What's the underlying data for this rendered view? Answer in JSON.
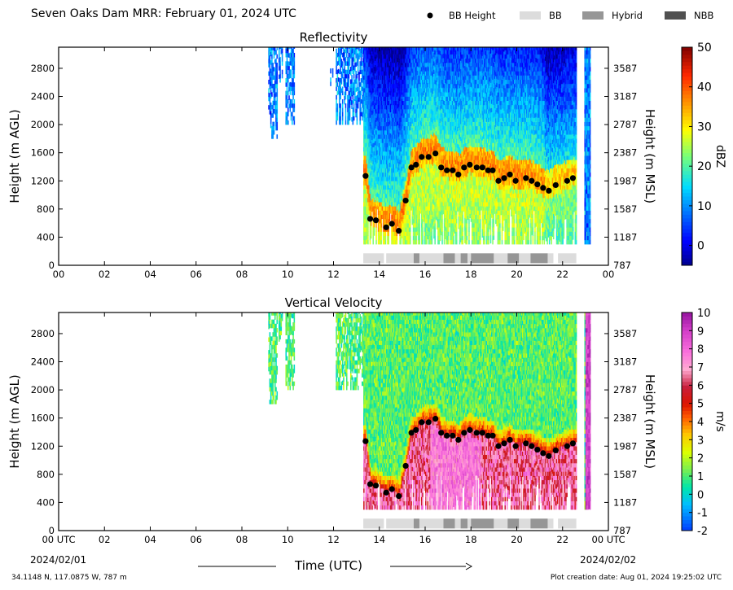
{
  "header": {
    "title": "Seven Oaks Dam MRR:  February 01, 2024 UTC",
    "legend": [
      {
        "kind": "dot",
        "label": "BB Height",
        "color": "#000000"
      },
      {
        "kind": "box",
        "label": "BB",
        "color": "#dcdcdc"
      },
      {
        "kind": "box",
        "label": "Hybrid",
        "color": "#969696"
      },
      {
        "kind": "box",
        "label": "NBB",
        "color": "#505050"
      }
    ]
  },
  "footer": {
    "x_title": "Time (UTC)",
    "date_start": "2024/02/01",
    "date_end": "2024/02/02",
    "location": "34.1148 N, 117.0875 W, 787 m",
    "creation": "Plot creation date: Aug 01, 2024 19:25:02 UTC"
  },
  "chart_data": [
    {
      "type": "heatmap",
      "title": "Reflectivity",
      "ylabel": "Height (m AGL)",
      "ylabel_right": "Height (m MSL)",
      "xlim": [
        0,
        24
      ],
      "ylim": [
        0,
        3100
      ],
      "x_ticks": [
        "00",
        "02",
        "04",
        "06",
        "08",
        "10",
        "12",
        "14",
        "16",
        "18",
        "20",
        "22",
        "00"
      ],
      "y_ticks": [
        0,
        400,
        800,
        1200,
        1600,
        2000,
        2400,
        2800
      ],
      "y_ticks_right": [
        787,
        1187,
        1587,
        1987,
        2387,
        2787,
        3187,
        3587
      ],
      "colorbar": {
        "label": "dBZ",
        "min": -5,
        "max": 50,
        "ticks": [
          0,
          10,
          20,
          30,
          40,
          50
        ]
      },
      "bb_height": {
        "times": [
          13.4,
          13.6,
          13.85,
          14.3,
          14.55,
          14.85,
          15.15,
          15.4,
          15.6,
          15.85,
          16.15,
          16.45,
          16.7,
          16.95,
          17.2,
          17.45,
          17.7,
          17.95,
          18.25,
          18.5,
          18.75,
          18.95,
          19.2,
          19.45,
          19.7,
          19.95,
          20.4,
          20.65,
          20.9,
          21.15,
          21.4,
          21.7,
          22.2,
          22.45
        ],
        "heights": [
          1270,
          660,
          640,
          540,
          590,
          490,
          920,
          1390,
          1430,
          1540,
          1540,
          1590,
          1390,
          1350,
          1350,
          1290,
          1390,
          1430,
          1390,
          1390,
          1350,
          1350,
          1200,
          1240,
          1290,
          1200,
          1240,
          1200,
          1150,
          1100,
          1060,
          1140,
          1200,
          1240
        ]
      },
      "bb_type": [
        {
          "start": 13.3,
          "end": 14.2,
          "type": "BB"
        },
        {
          "start": 14.3,
          "end": 15.5,
          "type": "BB"
        },
        {
          "start": 15.5,
          "end": 15.75,
          "type": "Hybrid"
        },
        {
          "start": 15.75,
          "end": 16.8,
          "type": "BB"
        },
        {
          "start": 16.8,
          "end": 17.3,
          "type": "Hybrid"
        },
        {
          "start": 17.3,
          "end": 17.55,
          "type": "BB"
        },
        {
          "start": 17.55,
          "end": 17.85,
          "type": "Hybrid"
        },
        {
          "start": 17.85,
          "end": 18.0,
          "type": "BB"
        },
        {
          "start": 18.0,
          "end": 19.0,
          "type": "Hybrid"
        },
        {
          "start": 19.0,
          "end": 19.6,
          "type": "BB"
        },
        {
          "start": 19.6,
          "end": 20.1,
          "type": "Hybrid"
        },
        {
          "start": 20.1,
          "end": 20.6,
          "type": "BB"
        },
        {
          "start": 20.6,
          "end": 21.35,
          "type": "Hybrid"
        },
        {
          "start": 21.35,
          "end": 21.6,
          "type": "BB"
        },
        {
          "start": 21.8,
          "end": 22.6,
          "type": "BB"
        }
      ],
      "coverage": [
        {
          "start": 9.15,
          "end": 9.55,
          "top": 3100,
          "bottom": 1800
        },
        {
          "start": 9.6,
          "end": 9.75,
          "top": 3100,
          "bottom": 2600
        },
        {
          "start": 9.9,
          "end": 10.3,
          "top": 3100,
          "bottom": 2000
        },
        {
          "start": 11.85,
          "end": 11.95,
          "top": 2800,
          "bottom": 2550
        },
        {
          "start": 12.1,
          "end": 13.3,
          "top": 3100,
          "bottom": 2000
        },
        {
          "start": 13.3,
          "end": 22.6,
          "top": 3100,
          "bottom": 300
        },
        {
          "start": 22.95,
          "end": 23.2,
          "top": 3100,
          "bottom": 300
        }
      ]
    },
    {
      "type": "heatmap",
      "title": "Vertical Velocity",
      "ylabel": "Height (m AGL)",
      "ylabel_right": "Height (m MSL)",
      "xlim": [
        0,
        24
      ],
      "ylim": [
        0,
        3100
      ],
      "x_ticks": [
        "00 UTC",
        "02",
        "04",
        "06",
        "08",
        "10",
        "12",
        "14",
        "16",
        "18",
        "20",
        "22",
        "00 UTC"
      ],
      "y_ticks": [
        0,
        400,
        800,
        1200,
        1600,
        2000,
        2400,
        2800
      ],
      "y_ticks_right": [
        787,
        1187,
        1587,
        1987,
        2387,
        2787,
        3187,
        3587
      ],
      "colorbar": {
        "label": "m/s",
        "min": -2,
        "max": 10,
        "ticks": [
          -2,
          -1,
          0,
          1,
          2,
          3,
          4,
          5,
          6,
          7,
          8,
          9,
          10
        ]
      },
      "bb_height": {
        "times": [
          13.4,
          13.6,
          13.85,
          14.3,
          14.55,
          14.85,
          15.15,
          15.4,
          15.6,
          15.85,
          16.15,
          16.45,
          16.7,
          16.95,
          17.2,
          17.45,
          17.7,
          17.95,
          18.25,
          18.5,
          18.75,
          18.95,
          19.2,
          19.45,
          19.7,
          19.95,
          20.4,
          20.65,
          20.9,
          21.15,
          21.4,
          21.7,
          22.2,
          22.45
        ],
        "heights": [
          1270,
          660,
          640,
          540,
          590,
          490,
          920,
          1390,
          1430,
          1540,
          1540,
          1590,
          1390,
          1350,
          1350,
          1290,
          1390,
          1430,
          1390,
          1390,
          1350,
          1350,
          1200,
          1240,
          1290,
          1200,
          1240,
          1200,
          1150,
          1100,
          1060,
          1140,
          1200,
          1240
        ]
      },
      "bb_type": [
        {
          "start": 13.3,
          "end": 14.2,
          "type": "BB"
        },
        {
          "start": 14.3,
          "end": 15.5,
          "type": "BB"
        },
        {
          "start": 15.5,
          "end": 15.75,
          "type": "Hybrid"
        },
        {
          "start": 15.75,
          "end": 16.8,
          "type": "BB"
        },
        {
          "start": 16.8,
          "end": 17.3,
          "type": "Hybrid"
        },
        {
          "start": 17.3,
          "end": 17.55,
          "type": "BB"
        },
        {
          "start": 17.55,
          "end": 17.85,
          "type": "Hybrid"
        },
        {
          "start": 17.85,
          "end": 18.0,
          "type": "BB"
        },
        {
          "start": 18.0,
          "end": 19.0,
          "type": "Hybrid"
        },
        {
          "start": 19.0,
          "end": 19.6,
          "type": "BB"
        },
        {
          "start": 19.6,
          "end": 20.1,
          "type": "Hybrid"
        },
        {
          "start": 20.1,
          "end": 20.6,
          "type": "BB"
        },
        {
          "start": 20.6,
          "end": 21.35,
          "type": "Hybrid"
        },
        {
          "start": 21.35,
          "end": 21.6,
          "type": "BB"
        },
        {
          "start": 21.8,
          "end": 22.6,
          "type": "BB"
        }
      ],
      "coverage": [
        {
          "start": 9.15,
          "end": 9.55,
          "top": 3100,
          "bottom": 1800
        },
        {
          "start": 9.6,
          "end": 9.75,
          "top": 3100,
          "bottom": 2600
        },
        {
          "start": 9.9,
          "end": 10.3,
          "top": 3100,
          "bottom": 2000
        },
        {
          "start": 12.1,
          "end": 13.3,
          "top": 3100,
          "bottom": 2000
        },
        {
          "start": 13.3,
          "end": 22.6,
          "top": 3100,
          "bottom": 300
        },
        {
          "start": 22.95,
          "end": 23.2,
          "top": 3100,
          "bottom": 300
        }
      ]
    }
  ]
}
